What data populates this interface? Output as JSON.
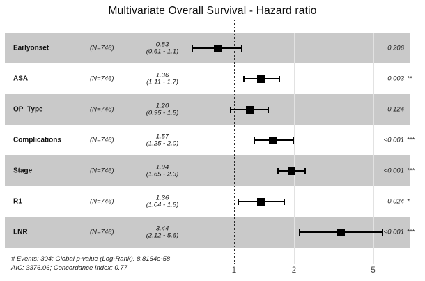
{
  "colors": {
    "band": "#c9c9c9",
    "marker": "#000000",
    "gridline": "#e2e2e2"
  },
  "chart_data": {
    "type": "scatter",
    "variant": "forest-plot",
    "title": "Multivariate Overall Survival - Hazard ratio",
    "x_axis": {
      "scale": "log10",
      "ticks": [
        1,
        2,
        5
      ],
      "tick_labels": [
        "1",
        "2",
        "5"
      ]
    },
    "reference_line": 1,
    "grid": "vertical-light",
    "legend_position": "none",
    "rows": [
      {
        "label": "Earlyonset",
        "n_label": "(N=746)",
        "hr": 0.83,
        "ci_low": 0.61,
        "ci_high": 1.1,
        "estimate_text": "0.83",
        "ci_text": "(0.61 - 1.1)",
        "p_value": "0.206",
        "significance": ""
      },
      {
        "label": "ASA",
        "n_label": "(N=746)",
        "hr": 1.36,
        "ci_low": 1.11,
        "ci_high": 1.7,
        "estimate_text": "1.36",
        "ci_text": "(1.11 - 1.7)",
        "p_value": "0.003",
        "significance": "**"
      },
      {
        "label": "OP_Type",
        "n_label": "(N=746)",
        "hr": 1.2,
        "ci_low": 0.95,
        "ci_high": 1.5,
        "estimate_text": "1.20",
        "ci_text": "(0.95 - 1.5)",
        "p_value": "0.124",
        "significance": ""
      },
      {
        "label": "Complications",
        "n_label": "(N=746)",
        "hr": 1.57,
        "ci_low": 1.25,
        "ci_high": 2.0,
        "estimate_text": "1.57",
        "ci_text": "(1.25 - 2.0)",
        "p_value": "<0.001",
        "significance": "***"
      },
      {
        "label": "Stage",
        "n_label": "(N=746)",
        "hr": 1.94,
        "ci_low": 1.65,
        "ci_high": 2.3,
        "estimate_text": "1.94",
        "ci_text": "(1.65 - 2.3)",
        "p_value": "<0.001",
        "significance": "***"
      },
      {
        "label": "R1",
        "n_label": "(N=746)",
        "hr": 1.36,
        "ci_low": 1.04,
        "ci_high": 1.8,
        "estimate_text": "1.36",
        "ci_text": "(1.04 - 1.8)",
        "p_value": "0.024",
        "significance": "*"
      },
      {
        "label": "LNR",
        "n_label": "(N=746)",
        "hr": 3.44,
        "ci_low": 2.12,
        "ci_high": 5.6,
        "estimate_text": "3.44",
        "ci_text": "(2.12 - 5.6)",
        "p_value": "<0.001",
        "significance": "***"
      }
    ],
    "footer": [
      "# Events: 304; Global p-value (Log-Rank): 8.8164e-58",
      "AIC: 3376.06; Concordance Index: 0.77"
    ]
  }
}
